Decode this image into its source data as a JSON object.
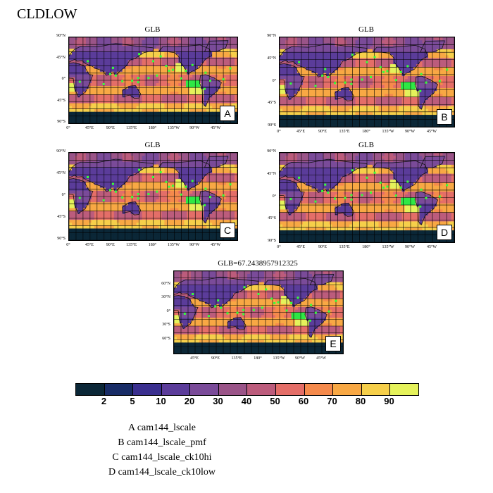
{
  "title": "CLDLOW",
  "chart_data": {
    "type": "heatmap",
    "variable": "CLDLOW",
    "colorbar": {
      "levels": [
        "2",
        "5",
        "10",
        "20",
        "30",
        "40",
        "50",
        "60",
        "70",
        "80",
        "90"
      ],
      "colors": [
        "#0b2737",
        "#182c66",
        "#3a2f8f",
        "#5b3c9a",
        "#7a4b99",
        "#9a5488",
        "#bc5c7c",
        "#e46e68",
        "#f58a4c",
        "#f8a844",
        "#f6cf4a",
        "#e5f25b"
      ]
    },
    "panels": [
      {
        "letter": "A",
        "title": "GLB",
        "projection": "cylindrical",
        "lon_range": [
          0,
          360
        ],
        "lat_range": [
          -90,
          90
        ],
        "y_ticks": [
          "90°N",
          "45°N",
          "0°",
          "45°S",
          "90°S"
        ],
        "x_ticks": [
          "0°",
          "45°E",
          "90°E",
          "135°E",
          "180°",
          "135°W",
          "90°W",
          "45°W"
        ]
      },
      {
        "letter": "B",
        "title": "GLB",
        "projection": "cylindrical",
        "lon_range": [
          0,
          360
        ],
        "lat_range": [
          -90,
          90
        ],
        "y_ticks": [
          "90°N",
          "45°N",
          "0°",
          "45°S",
          "90°S"
        ],
        "x_ticks": [
          "0°",
          "45°E",
          "90°E",
          "135°E",
          "180°",
          "135°W",
          "90°W",
          "45°W"
        ]
      },
      {
        "letter": "C",
        "title": "GLB",
        "projection": "cylindrical",
        "lon_range": [
          0,
          360
        ],
        "lat_range": [
          -90,
          90
        ],
        "y_ticks": [
          "90°N",
          "45°N",
          "0°",
          "45°S",
          "90°S"
        ],
        "x_ticks": [
          "0°",
          "45°E",
          "90°E",
          "135°E",
          "180°",
          "135°W",
          "90°W",
          "45°W"
        ]
      },
      {
        "letter": "D",
        "title": "GLB",
        "projection": "cylindrical",
        "lon_range": [
          0,
          360
        ],
        "lat_range": [
          -90,
          90
        ],
        "y_ticks": [
          "90°N",
          "45°N",
          "0°",
          "45°S",
          "90°S"
        ],
        "x_ticks": [
          "0°",
          "45°E",
          "90°E",
          "135°E",
          "180°",
          "135°W",
          "90°W",
          "45°W"
        ]
      },
      {
        "letter": "E",
        "title": "GLB=67.2438957912325",
        "projection": "cylindrical",
        "lon_range": [
          0,
          360
        ],
        "lat_range": [
          -90,
          90
        ],
        "y_ticks": [
          "60°N",
          "30°N",
          "0°",
          "30°S",
          "60°S"
        ],
        "x_ticks": [
          "45°E",
          "90°E",
          "135°E",
          "180°",
          "135°W",
          "90°W",
          "45°W"
        ]
      }
    ],
    "legend": [
      "A  cam144_lscale",
      "B  cam144_lscale_pmf",
      "C  cam144_lscale_ck10hi",
      "D  cam144_lscale_ck10low"
    ]
  }
}
